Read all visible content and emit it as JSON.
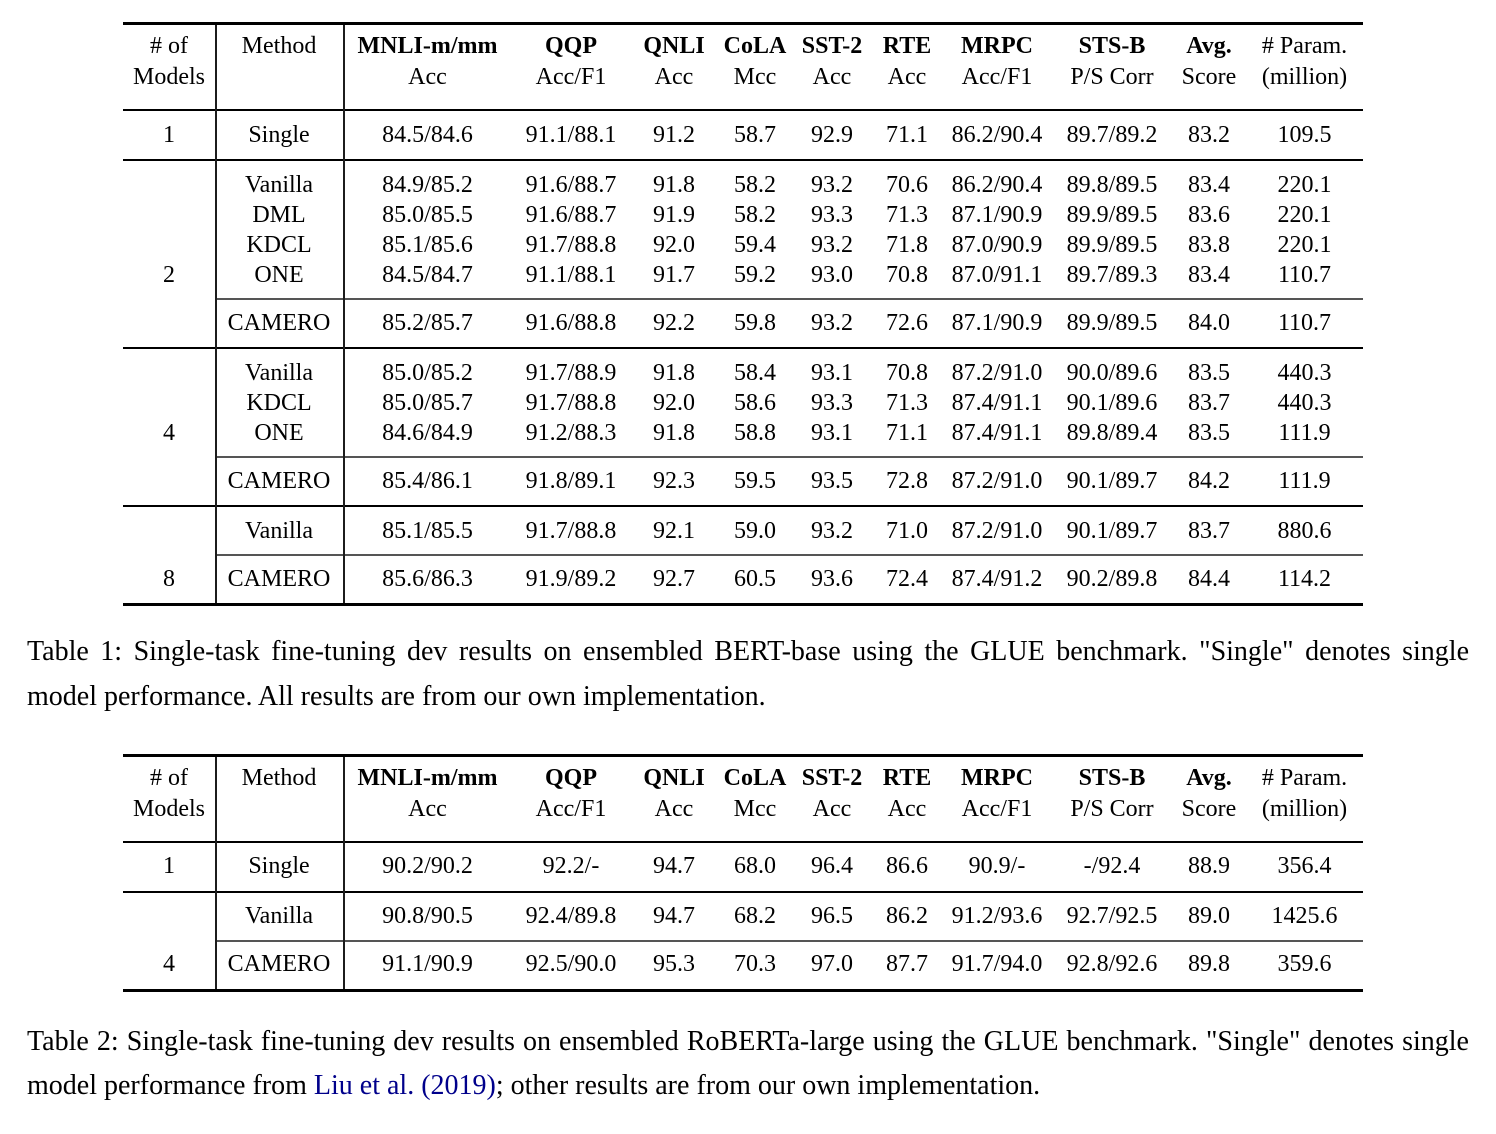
{
  "colors": {
    "link_blue": "#00008B",
    "rule_black": "#000000",
    "partial_rule_gray": "#555555"
  },
  "table1": {
    "header": [
      {
        "line1": "# of",
        "line2": "Models"
      },
      {
        "line1": "Method",
        "line2": ""
      },
      {
        "line1": "MNLI-m/mm",
        "line2": "Acc"
      },
      {
        "line1": "QQP",
        "line2": "Acc/F1"
      },
      {
        "line1": "QNLI",
        "line2": "Acc"
      },
      {
        "line1": "CoLA",
        "line2": "Mcc"
      },
      {
        "line1": "SST-2",
        "line2": "Acc"
      },
      {
        "line1": "RTE",
        "line2": "Acc"
      },
      {
        "line1": "MRPC",
        "line2": "Acc/F1"
      },
      {
        "line1": "STS-B",
        "line2": "P/S Corr"
      },
      {
        "line1": "Avg.",
        "line2": "Score"
      },
      {
        "line1": "# Param.",
        "line2": "(million)"
      }
    ],
    "rows": [
      {
        "num": "1",
        "method": "Single",
        "rule_above": "full",
        "values": [
          "84.5/84.6",
          "91.1/88.1",
          "91.2",
          "58.7",
          "92.9",
          "71.1",
          "86.2/90.4",
          "89.7/89.2",
          "83.2",
          "109.5"
        ]
      },
      {
        "num": "",
        "method": "Vanilla",
        "rule_above": "full",
        "values": [
          "84.9/85.2",
          "91.6/88.7",
          "91.8",
          "58.2",
          "93.2",
          "70.6",
          "86.2/90.4",
          "89.8/89.5",
          "83.4",
          "220.1"
        ]
      },
      {
        "num": "",
        "method": "DML",
        "rule_above": "none",
        "values": [
          "85.0/85.5",
          "91.6/88.7",
          "91.9",
          "58.2",
          "93.3",
          "71.3",
          "87.1/90.9",
          "89.9/89.5",
          "83.6",
          "220.1"
        ]
      },
      {
        "num": "",
        "method": "KDCL",
        "rule_above": "none",
        "values": [
          "85.1/85.6",
          "91.7/88.8",
          "92.0",
          "59.4",
          "93.2",
          "71.8",
          "87.0/90.9",
          "89.9/89.5",
          "83.8",
          "220.1"
        ]
      },
      {
        "num": "2",
        "method": "ONE",
        "rule_above": "none",
        "values": [
          "84.5/84.7",
          "91.1/88.1",
          "91.7",
          "59.2",
          "93.0",
          "70.8",
          "87.0/91.1",
          "89.7/89.3",
          "83.4",
          "110.7"
        ]
      },
      {
        "num": "",
        "method": "CAMERO",
        "rule_above": "partial",
        "values": [
          "85.2/85.7",
          "91.6/88.8",
          "92.2",
          "59.8",
          "93.2",
          "72.6",
          "87.1/90.9",
          "89.9/89.5",
          "84.0",
          "110.7"
        ]
      },
      {
        "num": "",
        "method": "Vanilla",
        "rule_above": "full",
        "values": [
          "85.0/85.2",
          "91.7/88.9",
          "91.8",
          "58.4",
          "93.1",
          "70.8",
          "87.2/91.0",
          "90.0/89.6",
          "83.5",
          "440.3"
        ]
      },
      {
        "num": "",
        "method": "KDCL",
        "rule_above": "none",
        "values": [
          "85.0/85.7",
          "91.7/88.8",
          "92.0",
          "58.6",
          "93.3",
          "71.3",
          "87.4/91.1",
          "90.1/89.6",
          "83.7",
          "440.3"
        ]
      },
      {
        "num": "4",
        "method": "ONE",
        "rule_above": "none",
        "values": [
          "84.6/84.9",
          "91.2/88.3",
          "91.8",
          "58.8",
          "93.1",
          "71.1",
          "87.4/91.1",
          "89.8/89.4",
          "83.5",
          "111.9"
        ]
      },
      {
        "num": "",
        "method": "CAMERO",
        "rule_above": "partial",
        "values": [
          "85.4/86.1",
          "91.8/89.1",
          "92.3",
          "59.5",
          "93.5",
          "72.8",
          "87.2/91.0",
          "90.1/89.7",
          "84.2",
          "111.9"
        ]
      },
      {
        "num": "",
        "method": "Vanilla",
        "rule_above": "full",
        "values": [
          "85.1/85.5",
          "91.7/88.8",
          "92.1",
          "59.0",
          "93.2",
          "71.0",
          "87.2/91.0",
          "90.1/89.7",
          "83.7",
          "880.6"
        ]
      },
      {
        "num": "8",
        "method": "CAMERO",
        "rule_above": "partial",
        "values": [
          "85.6/86.3",
          "91.9/89.2",
          "92.7",
          "60.5",
          "93.6",
          "72.4",
          "87.4/91.2",
          "90.2/89.8",
          "84.4",
          "114.2"
        ]
      }
    ]
  },
  "table2": {
    "header": [
      {
        "line1": "# of",
        "line2": "Models"
      },
      {
        "line1": "Method",
        "line2": ""
      },
      {
        "line1": "MNLI-m/mm",
        "line2": "Acc"
      },
      {
        "line1": "QQP",
        "line2": "Acc/F1"
      },
      {
        "line1": "QNLI",
        "line2": "Acc"
      },
      {
        "line1": "CoLA",
        "line2": "Mcc"
      },
      {
        "line1": "SST-2",
        "line2": "Acc"
      },
      {
        "line1": "RTE",
        "line2": "Acc"
      },
      {
        "line1": "MRPC",
        "line2": "Acc/F1"
      },
      {
        "line1": "STS-B",
        "line2": "P/S Corr"
      },
      {
        "line1": "Avg.",
        "line2": "Score"
      },
      {
        "line1": "# Param.",
        "line2": "(million)"
      }
    ],
    "rows": [
      {
        "num": "1",
        "method": "Single",
        "rule_above": "full",
        "values": [
          "90.2/90.2",
          "92.2/-",
          "94.7",
          "68.0",
          "96.4",
          "86.6",
          "90.9/-",
          "-/92.4",
          "88.9",
          "356.4"
        ]
      },
      {
        "num": "",
        "method": "Vanilla",
        "rule_above": "full",
        "values": [
          "90.8/90.5",
          "92.4/89.8",
          "94.7",
          "68.2",
          "96.5",
          "86.2",
          "91.2/93.6",
          "92.7/92.5",
          "89.0",
          "1425.6"
        ]
      },
      {
        "num": "4",
        "method": "CAMERO",
        "rule_above": "partial",
        "values": [
          "91.1/90.9",
          "92.5/90.0",
          "95.3",
          "70.3",
          "97.0",
          "87.7",
          "91.7/94.0",
          "92.8/92.6",
          "89.8",
          "359.6"
        ]
      }
    ]
  },
  "captions": {
    "table1": "Table 1: Single-task fine-tuning dev results on ensembled BERT-base using the GLUE benchmark. \"Single\" denotes single model performance. All results are from our own implementation.",
    "table2_pre": "Table 2: Single-task fine-tuning dev results on ensembled RoBERTa-large using the GLUE benchmark. \"Single\" denotes single model performance from ",
    "table2_citation": "Liu et al. (2019)",
    "table2_post": "; other results are from our own implementation."
  }
}
